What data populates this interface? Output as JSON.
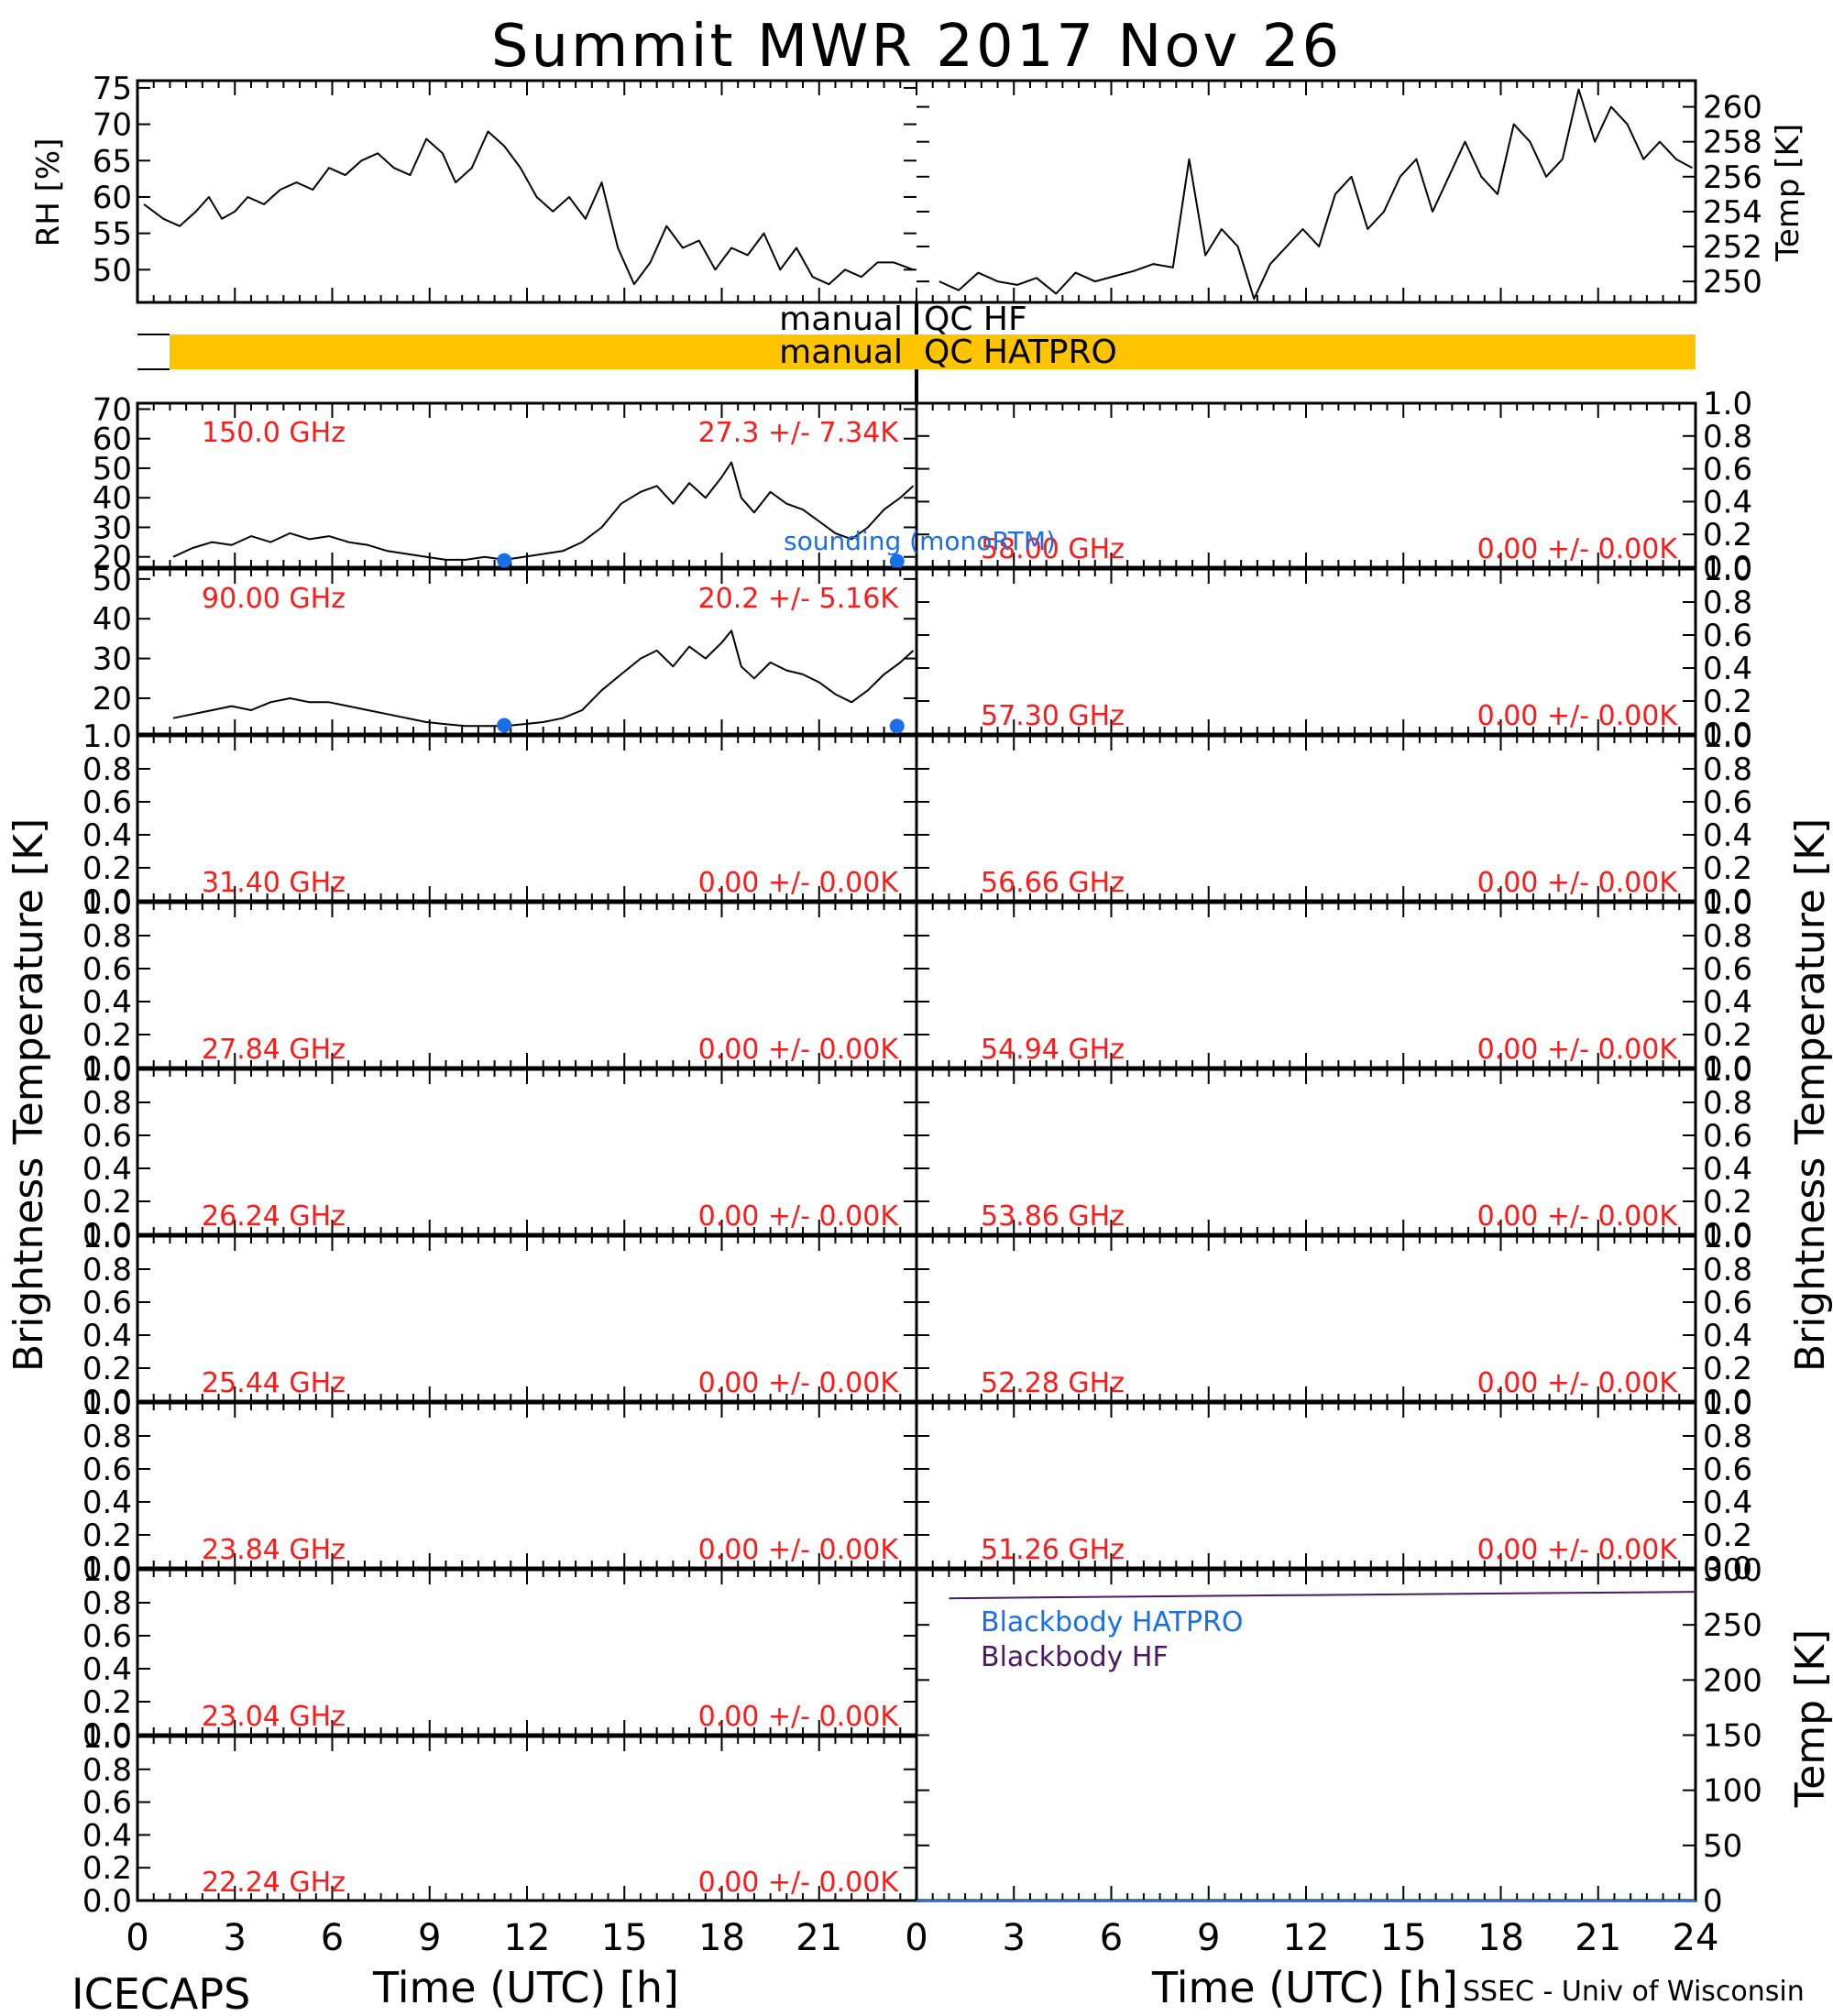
{
  "title": "Summit MWR 2017 Nov 26",
  "footer_left": "ICECAPS",
  "footer_right": "SSEC - Univ of Wisconsin",
  "colors": {
    "label_red": "#ff1a1a",
    "sounding_blue": "#1a6fe6",
    "blackbody_hatpro_blue": "#1a6fe6",
    "blackbody_hf_purple": "#4b1a66",
    "qc_orange": "#ffc400",
    "trace": "#000000"
  },
  "xaxis": {
    "label": "Time (UTC) [h]",
    "range": [
      0,
      24
    ],
    "left_ticks": [
      "0",
      "3",
      "6",
      "9",
      "12",
      "15",
      "18",
      "21"
    ],
    "right_ticks": [
      "0",
      "3",
      "6",
      "9",
      "12",
      "15",
      "18",
      "21",
      "24"
    ]
  },
  "shared_axis_labels": {
    "left": "Brightness Temperature [K]",
    "right": "Brightness Temperature [K]"
  },
  "qc": {
    "hf_label_left": "manual",
    "hf_label_right": "QC HF",
    "hatpro_label_left": "manual",
    "hatpro_label_right": "QC HATPRO",
    "hatpro_flag_range_hours": [
      1.0,
      47.2
    ],
    "hf_flag_range_hours": []
  },
  "legend": {
    "sounding": "sounding (monoRTM)",
    "blackbody_hatpro": "Blackbody HATPRO",
    "blackbody_hf": "Blackbody HF"
  },
  "chart_data": [
    {
      "id": "rh",
      "type": "line",
      "ylabel": "RH [%]",
      "yticks": [
        "50",
        "55",
        "60",
        "65",
        "70",
        "75"
      ],
      "ylim": [
        45.5,
        76
      ],
      "x": [
        0.2,
        0.8,
        1.3,
        1.8,
        2.2,
        2.6,
        3.0,
        3.4,
        3.9,
        4.4,
        4.9,
        5.4,
        5.9,
        6.4,
        6.9,
        7.4,
        7.9,
        8.4,
        8.9,
        9.4,
        9.8,
        10.3,
        10.8,
        11.3,
        11.8,
        12.3,
        12.8,
        13.3,
        13.8,
        14.3,
        14.8,
        15.3,
        15.8,
        16.3,
        16.8,
        17.3,
        17.8,
        18.3,
        18.8,
        19.3,
        19.8,
        20.3,
        20.8,
        21.3,
        21.8,
        22.3,
        22.8,
        23.3,
        23.9
      ],
      "values": [
        59,
        57,
        56,
        58,
        60,
        57,
        58,
        60,
        59,
        61,
        62,
        61,
        64,
        63,
        65,
        66,
        64,
        63,
        68,
        66,
        62,
        64,
        69,
        67,
        64,
        60,
        58,
        60,
        57,
        62,
        53,
        48,
        51,
        56,
        53,
        54,
        50,
        53,
        52,
        55,
        50,
        53,
        49,
        48,
        50,
        49,
        51,
        51,
        50
      ]
    },
    {
      "id": "temp",
      "type": "line",
      "ylabel": "Temp [K]",
      "yticks": [
        "250",
        "252",
        "254",
        "256",
        "258",
        "260"
      ],
      "ylim": [
        248.8,
        261.5
      ],
      "x": [
        24.7,
        25.3,
        25.9,
        26.5,
        27.1,
        27.7,
        28.3,
        28.9,
        29.5,
        30.1,
        30.7,
        31.3,
        31.9,
        32.4,
        32.9,
        33.4,
        33.9,
        34.4,
        34.9,
        35.4,
        35.9,
        36.4,
        36.9,
        37.4,
        37.9,
        38.4,
        38.9,
        39.4,
        39.9,
        40.4,
        40.9,
        41.4,
        41.9,
        42.4,
        42.9,
        43.4,
        43.9,
        44.4,
        44.9,
        45.4,
        45.9,
        46.4,
        46.9,
        47.4,
        47.9
      ],
      "values": [
        250,
        249.5,
        250.5,
        250,
        249.8,
        250.2,
        249.3,
        250.5,
        250,
        250.3,
        250.6,
        251,
        250.8,
        257,
        251.5,
        253,
        252,
        249,
        251,
        252,
        253,
        252,
        255,
        256,
        253,
        254,
        256,
        257,
        254,
        256,
        258,
        256,
        255,
        259,
        258,
        256,
        257,
        261,
        258,
        260,
        259,
        257,
        258,
        257,
        256.5
      ]
    },
    {
      "id": "tb_150",
      "type": "line",
      "frequency": "150.0 GHz",
      "stats": "27.3 +/-  7.34K",
      "yticks": [
        "20",
        "30",
        "40",
        "50",
        "60",
        "70"
      ],
      "ylim": [
        16.5,
        72
      ],
      "x": [
        1.1,
        1.7,
        2.3,
        2.9,
        3.5,
        4.1,
        4.7,
        5.3,
        5.9,
        6.5,
        7.1,
        7.7,
        8.3,
        8.9,
        9.5,
        10.1,
        10.7,
        11.3,
        11.9,
        12.5,
        13.1,
        13.7,
        14.3,
        14.9,
        15.5,
        16.0,
        16.5,
        17.0,
        17.5,
        18.0,
        18.3,
        18.6,
        19.0,
        19.5,
        20.0,
        20.5,
        21.0,
        21.5,
        22.0,
        22.5,
        23.0,
        23.5,
        23.9
      ],
      "values": [
        20,
        23,
        25,
        24,
        27,
        25,
        28,
        26,
        27,
        25,
        24,
        22,
        21,
        20,
        19,
        19,
        20,
        19,
        20,
        21,
        22,
        25,
        30,
        38,
        42,
        44,
        38,
        45,
        40,
        47,
        52,
        40,
        35,
        42,
        38,
        36,
        32,
        28,
        26,
        30,
        36,
        40,
        44
      ],
      "sounding_x": [
        11.3,
        23.4
      ],
      "sounding_values": [
        18.8,
        18.5
      ]
    },
    {
      "id": "tb_90",
      "type": "line",
      "frequency": "90.00 GHz",
      "stats": "20.2 +/-  5.16K",
      "yticks": [
        "20",
        "30",
        "40",
        "50"
      ],
      "ylim": [
        11,
        52.5
      ],
      "x": [
        1.1,
        1.7,
        2.3,
        2.9,
        3.5,
        4.1,
        4.7,
        5.3,
        5.9,
        6.5,
        7.1,
        7.7,
        8.3,
        8.9,
        9.5,
        10.1,
        10.7,
        11.3,
        11.9,
        12.5,
        13.1,
        13.7,
        14.3,
        14.9,
        15.5,
        16.0,
        16.5,
        17.0,
        17.5,
        18.0,
        18.3,
        18.6,
        19.0,
        19.5,
        20.0,
        20.5,
        21.0,
        21.5,
        22.0,
        22.5,
        23.0,
        23.5,
        23.9
      ],
      "values": [
        15,
        16,
        17,
        18,
        17,
        19,
        20,
        19,
        19,
        18,
        17,
        16,
        15,
        14,
        13.5,
        13,
        13,
        13,
        13.5,
        14,
        15,
        17,
        22,
        26,
        30,
        32,
        28,
        33,
        30,
        34,
        37,
        28,
        25,
        29,
        27,
        26,
        24,
        21,
        19,
        22,
        26,
        29,
        32
      ],
      "sounding_x": [
        11.3,
        23.4
      ],
      "sounding_values": [
        13.2,
        13.0
      ]
    },
    {
      "id": "tb_31.40",
      "type": "line",
      "frequency": "31.40 GHz",
      "stats": "0.00 +/-  0.00K",
      "yticks": [
        "0.0",
        "0.2",
        "0.4",
        "0.6",
        "0.8",
        "1.0"
      ],
      "ylim": [
        0,
        1
      ],
      "x": [],
      "values": []
    },
    {
      "id": "tb_27.84",
      "type": "line",
      "frequency": "27.84 GHz",
      "stats": "0.00 +/-  0.00K",
      "yticks": [
        "0.0",
        "0.2",
        "0.4",
        "0.6",
        "0.8",
        "1.0"
      ],
      "ylim": [
        0,
        1
      ],
      "x": [],
      "values": []
    },
    {
      "id": "tb_26.24",
      "type": "line",
      "frequency": "26.24 GHz",
      "stats": "0.00 +/-  0.00K",
      "yticks": [
        "0.0",
        "0.2",
        "0.4",
        "0.6",
        "0.8",
        "1.0"
      ],
      "ylim": [
        0,
        1
      ],
      "x": [],
      "values": []
    },
    {
      "id": "tb_25.44",
      "type": "line",
      "frequency": "25.44 GHz",
      "stats": "0.00 +/-  0.00K",
      "yticks": [
        "0.0",
        "0.2",
        "0.4",
        "0.6",
        "0.8",
        "1.0"
      ],
      "ylim": [
        0,
        1
      ],
      "x": [],
      "values": []
    },
    {
      "id": "tb_23.84",
      "type": "line",
      "frequency": "23.84 GHz",
      "stats": "0.00 +/-  0.00K",
      "yticks": [
        "0.0",
        "0.2",
        "0.4",
        "0.6",
        "0.8",
        "1.0"
      ],
      "ylim": [
        0,
        1
      ],
      "x": [],
      "values": []
    },
    {
      "id": "tb_23.04",
      "type": "line",
      "frequency": "23.04 GHz",
      "stats": "0.00 +/-  0.00K",
      "yticks": [
        "0.0",
        "0.2",
        "0.4",
        "0.6",
        "0.8",
        "1.0"
      ],
      "ylim": [
        0,
        1
      ],
      "x": [],
      "values": []
    },
    {
      "id": "tb_22.24",
      "type": "line",
      "frequency": "22.24 GHz",
      "stats": "0.00 +/-  0.00K",
      "yticks": [
        "0.0",
        "0.2",
        "0.4",
        "0.6",
        "0.8",
        "1.0"
      ],
      "ylim": [
        0,
        1
      ],
      "x": [],
      "values": []
    },
    {
      "id": "tb_58.00",
      "type": "line",
      "frequency": "58.00 GHz",
      "stats": "0.00 +/-  0.00K",
      "yticks": [
        "0.0",
        "0.2",
        "0.4",
        "0.6",
        "0.8",
        "1.0"
      ],
      "ylim": [
        0,
        1
      ],
      "x": [],
      "values": []
    },
    {
      "id": "tb_57.30",
      "type": "line",
      "frequency": "57.30 GHz",
      "stats": "0.00 +/-  0.00K",
      "yticks": [
        "0.0",
        "0.2",
        "0.4",
        "0.6",
        "0.8",
        "1.0"
      ],
      "ylim": [
        0,
        1
      ],
      "x": [],
      "values": []
    },
    {
      "id": "tb_56.66",
      "type": "line",
      "frequency": "56.66 GHz",
      "stats": "0.00 +/-  0.00K",
      "yticks": [
        "0.0",
        "0.2",
        "0.4",
        "0.6",
        "0.8",
        "1.0"
      ],
      "ylim": [
        0,
        1
      ],
      "x": [],
      "values": []
    },
    {
      "id": "tb_54.94",
      "type": "line",
      "frequency": "54.94 GHz",
      "stats": "0.00 +/-  0.00K",
      "yticks": [
        "0.0",
        "0.2",
        "0.4",
        "0.6",
        "0.8",
        "1.0"
      ],
      "ylim": [
        0,
        1
      ],
      "x": [],
      "values": []
    },
    {
      "id": "tb_53.86",
      "type": "line",
      "frequency": "53.86 GHz",
      "stats": "0.00 +/-  0.00K",
      "yticks": [
        "0.0",
        "0.2",
        "0.4",
        "0.6",
        "0.8",
        "1.0"
      ],
      "ylim": [
        0,
        1
      ],
      "x": [],
      "values": []
    },
    {
      "id": "tb_52.28",
      "type": "line",
      "frequency": "52.28 GHz",
      "stats": "0.00 +/-  0.00K",
      "yticks": [
        "0.0",
        "0.2",
        "0.4",
        "0.6",
        "0.8",
        "1.0"
      ],
      "ylim": [
        0,
        1
      ],
      "x": [],
      "values": []
    },
    {
      "id": "tb_51.26",
      "type": "line",
      "frequency": "51.26 GHz",
      "stats": "0.00 +/-  0.00K",
      "yticks": [
        "0.0",
        "0.2",
        "0.4",
        "0.6",
        "0.8",
        "1.0"
      ],
      "ylim": [
        0,
        1
      ],
      "x": [],
      "values": []
    },
    {
      "id": "blackbody",
      "type": "line",
      "ylabel": "Temp [K]",
      "yticks": [
        "0",
        "50",
        "100",
        "150",
        "200",
        "250",
        "300"
      ],
      "ylim": [
        0,
        300
      ],
      "series": [
        {
          "name": "Blackbody HF",
          "x": [
            1,
            4,
            8,
            12,
            16,
            20,
            24
          ],
          "values": [
            274,
            275,
            276,
            277,
            278,
            279,
            280
          ]
        },
        {
          "name": "Blackbody HATPRO",
          "x": [
            0,
            24
          ],
          "values": [
            0,
            0
          ]
        }
      ]
    }
  ]
}
